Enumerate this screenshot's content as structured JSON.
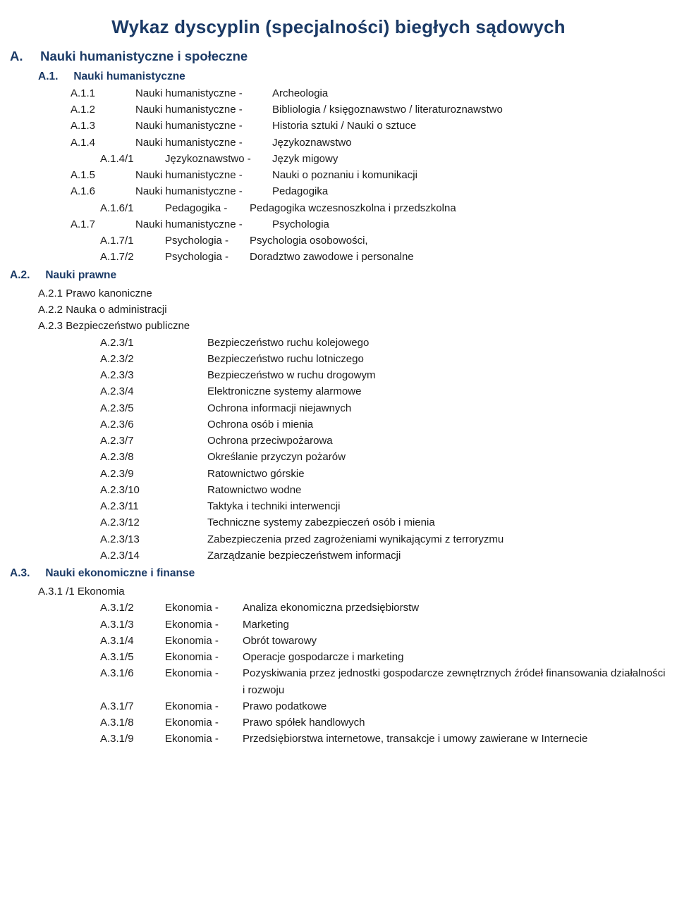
{
  "colors": {
    "heading": "#1b3a66",
    "body": "#1a1a1a",
    "background": "#ffffff"
  },
  "typography": {
    "titleFontSize": 26,
    "sectionFontSize": 18.5,
    "subsectionFontSize": 15.5,
    "bodyFontSize": 15,
    "fontFamily": "Segoe UI / Trebuchet MS"
  },
  "title": "Wykaz dyscyplin (specjalności) biegłych sądowych",
  "A": {
    "code": "A.",
    "label": "Nauki humanistyczne i społeczne",
    "A1": {
      "code": "A.1.",
      "label": "Nauki humanistyczne",
      "items": [
        {
          "code": "A.1.1",
          "cat": "Nauki humanistyczne -",
          "val": "Archeologia"
        },
        {
          "code": "A.1.2",
          "cat": "Nauki humanistyczne -",
          "val": "Bibliologia / księgoznawstwo / literaturoznawstwo"
        },
        {
          "code": "A.1.3",
          "cat": "Nauki humanistyczne -",
          "val": "Historia sztuki / Nauki o sztuce"
        },
        {
          "code": "A.1.4",
          "cat": "Nauki humanistyczne -",
          "val": "Językoznawstwo"
        }
      ],
      "a14": [
        {
          "code": "A.1.4/1",
          "cat": "Językoznawstwo -",
          "val": "Język migowy"
        }
      ],
      "a15": {
        "code": "A.1.5",
        "cat": "Nauki humanistyczne -",
        "val": "Nauki o poznaniu i komunikacji"
      },
      "a16": {
        "code": "A.1.6",
        "cat": "Nauki humanistyczne -",
        "val": "Pedagogika"
      },
      "a16sub": [
        {
          "code": "A.1.6/1",
          "cat": "Pedagogika -",
          "val": "Pedagogika wczesnoszkolna i przedszkolna"
        }
      ],
      "a17": {
        "code": "A.1.7",
        "cat": "Nauki humanistyczne -",
        "val": "Psychologia"
      },
      "a17sub": [
        {
          "code": "A.1.7/1",
          "cat": "Psychologia -",
          "val": "Psychologia osobowości,"
        },
        {
          "code": "A.1.7/2",
          "cat": "Psychologia -",
          "val": "Doradztwo zawodowe i personalne"
        }
      ]
    },
    "A2": {
      "code": "A.2.",
      "label": "Nauki prawne",
      "plain": [
        "A.2.1 Prawo kanoniczne",
        "A.2.2 Nauka o administracji",
        "A.2.3 Bezpieczeństwo publiczne"
      ],
      "a23": [
        {
          "code": "A.2.3/1",
          "val": "Bezpieczeństwo ruchu kolejowego"
        },
        {
          "code": "A.2.3/2",
          "val": "Bezpieczeństwo ruchu lotniczego"
        },
        {
          "code": "A.2.3/3",
          "val": "Bezpieczeństwo w ruchu drogowym"
        },
        {
          "code": "A.2.3/4",
          "val": "Elektroniczne systemy alarmowe"
        },
        {
          "code": "A.2.3/5",
          "val": "Ochrona informacji niejawnych"
        },
        {
          "code": "A.2.3/6",
          "val": "Ochrona osób i mienia"
        },
        {
          "code": "A.2.3/7",
          "val": "Ochrona przeciwpożarowa"
        },
        {
          "code": "A.2.3/8",
          "val": "Określanie przyczyn pożarów"
        },
        {
          "code": "A.2.3/9",
          "val": "Ratownictwo górskie"
        },
        {
          "code": "A.2.3/10",
          "val": "Ratownictwo wodne"
        },
        {
          "code": "A.2.3/11",
          "val": "Taktyka i techniki interwencji"
        },
        {
          "code": "A.2.3/12",
          "val": "Techniczne systemy zabezpieczeń osób i mienia"
        },
        {
          "code": "A.2.3/13",
          "val": "Zabezpieczenia przed zagrożeniami wynikającymi z terroryzmu"
        },
        {
          "code": "A.2.3/14",
          "val": "Zarządzanie bezpieczeństwem informacji"
        }
      ]
    },
    "A3": {
      "code": "A.3.",
      "label": "Nauki ekonomiczne i finanse",
      "plain": [
        "A.3.1 /1  Ekonomia"
      ],
      "a31": [
        {
          "code": "A.3.1/2",
          "cat": "Ekonomia -",
          "val": "Analiza ekonomiczna przedsiębiorstw"
        },
        {
          "code": "A.3.1/3",
          "cat": "Ekonomia -",
          "val": "Marketing"
        },
        {
          "code": "A.3.1/4",
          "cat": "Ekonomia -",
          "val": "Obrót towarowy"
        },
        {
          "code": "A.3.1/5",
          "cat": "Ekonomia -",
          "val": "Operacje gospodarcze i marketing"
        },
        {
          "code": "A.3.1/6",
          "cat": "Ekonomia -",
          "val": "Pozyskiwania przez jednostki gospodarcze zewnętrznych źródeł finansowania działalności i rozwoju"
        },
        {
          "code": "A.3.1/7",
          "cat": "Ekonomia -",
          "val": "Prawo podatkowe"
        },
        {
          "code": "A.3.1/8",
          "cat": "Ekonomia -",
          "val": "Prawo spółek handlowych"
        },
        {
          "code": "A.3.1/9",
          "cat": "Ekonomia -",
          "val": "Przedsiębiorstwa internetowe, transakcje i umowy zawierane w Internecie"
        }
      ]
    }
  }
}
